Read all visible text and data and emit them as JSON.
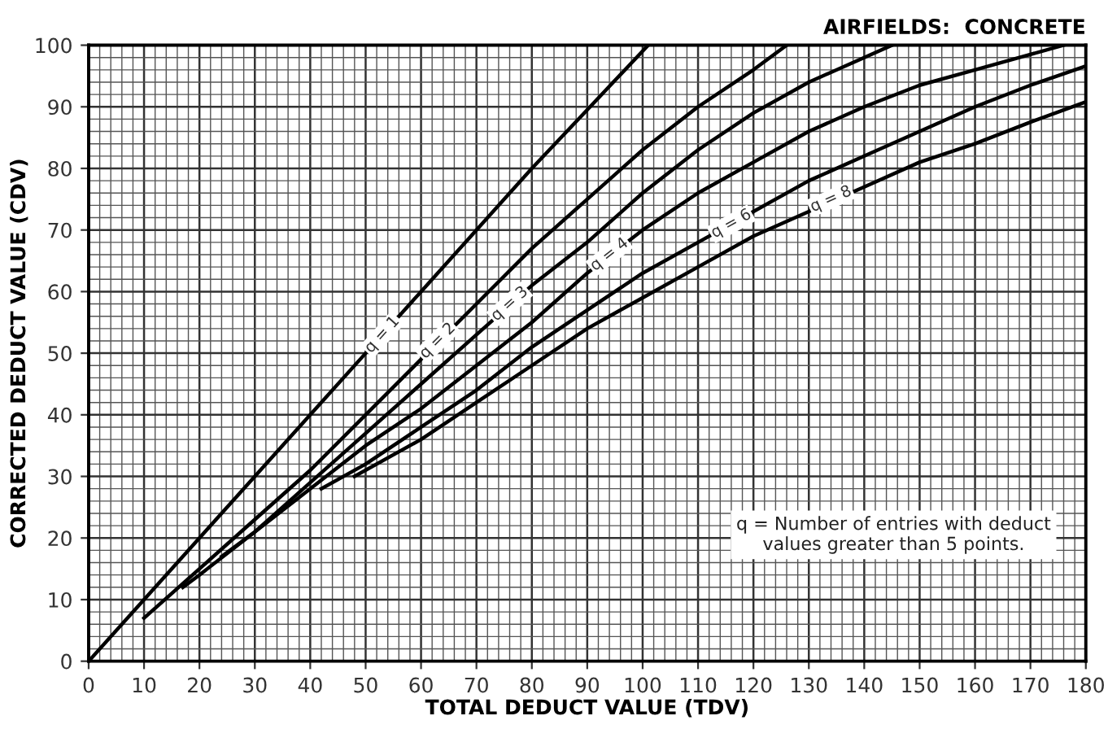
{
  "chart_data": {
    "type": "line",
    "title": "AIRFIELDS:  CONCRETE",
    "xlabel": "TOTAL DEDUCT VALUE (TDV)",
    "ylabel": "CORRECTED DEDUCT VALUE (CDV)",
    "series": [
      {
        "color": "#000000",
        "x": [
          0,
          10,
          20,
          30,
          40,
          50,
          60,
          70,
          80,
          90,
          101
        ],
        "values": [
          0,
          10,
          20,
          30,
          40,
          50,
          60,
          70,
          80,
          89.5,
          100
        ]
      },
      {
        "color": "#000000",
        "x": [
          10,
          20,
          30,
          40,
          50,
          60,
          70,
          80,
          90,
          100,
          110,
          120,
          126
        ],
        "values": [
          7,
          15,
          23,
          31,
          40,
          49,
          58,
          67,
          75,
          83,
          90,
          96,
          100
        ]
      },
      {
        "color": "#000000",
        "x": [
          17,
          20,
          30,
          40,
          50,
          60,
          70,
          80,
          90,
          100,
          110,
          120,
          130,
          140,
          145
        ],
        "values": [
          12,
          14,
          21,
          29,
          37,
          45,
          53,
          61,
          68,
          76,
          83,
          89,
          94,
          98,
          100
        ]
      },
      {
        "color": "#000000",
        "x": [
          24,
          30,
          40,
          50,
          60,
          70,
          80,
          90,
          100,
          110,
          120,
          130,
          140,
          150,
          160,
          170,
          176
        ],
        "values": [
          17,
          21,
          28,
          35,
          41,
          48,
          55,
          63,
          70,
          76,
          81,
          86,
          90,
          93.5,
          96,
          98.5,
          100
        ]
      },
      {
        "color": "#000000",
        "x": [
          42,
          50,
          60,
          70,
          80,
          90,
          100,
          110,
          120,
          130,
          140,
          150,
          160,
          170,
          180
        ],
        "values": [
          28,
          32,
          38,
          44,
          51,
          57,
          63,
          68,
          73,
          78,
          82,
          86,
          90,
          93.5,
          96.6
        ]
      },
      {
        "color": "#000000",
        "x": [
          48,
          60,
          70,
          80,
          90,
          100,
          110,
          120,
          130,
          140,
          150,
          160,
          170,
          180
        ],
        "values": [
          30,
          36,
          42,
          48,
          54,
          59,
          64,
          69,
          73,
          77,
          81,
          84,
          87.5,
          90.8
        ]
      }
    ],
    "annotations": [
      {
        "text": "q = 1",
        "x": 53,
        "y": 53
      },
      {
        "text": "q = 2",
        "x": 63,
        "y": 52
      },
      {
        "text": "q = 3",
        "x": 76,
        "y": 58
      },
      {
        "text": "q = 4",
        "x": 94,
        "y": 66
      },
      {
        "text": "q = 6",
        "x": 116,
        "y": 71
      },
      {
        "text": "q = 8",
        "x": 134,
        "y": 75
      },
      "q = Number of entries with deduct\nvalues greater than 5 points."
    ],
    "xlim": [
      0,
      180
    ],
    "ylim": [
      0,
      100
    ],
    "xticks": [
      0,
      10,
      20,
      30,
      40,
      50,
      60,
      70,
      80,
      90,
      100,
      110,
      120,
      130,
      140,
      150,
      160,
      170,
      180
    ],
    "yticks": [
      0,
      10,
      20,
      30,
      40,
      50,
      60,
      70,
      80,
      90,
      100
    ],
    "grid": true,
    "legend": false
  }
}
